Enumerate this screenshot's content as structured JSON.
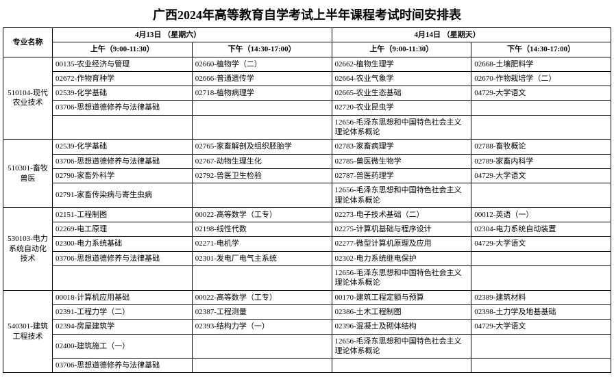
{
  "title": "广西2024年高等教育自学考试上半年课程考试时间安排表",
  "headers": {
    "major": "专业名称",
    "dateA": "4月13日 （星期六）",
    "dateB": "4月14日 （星期天）",
    "amA": "上午（9:00-11:30）",
    "pmA": "下午（14:30-17:00）",
    "amB": "上午（9:00-11:30）",
    "pmB": "下午（14:30-17:00）"
  },
  "majors": [
    {
      "name": "510104-现代农业技术",
      "rows": [
        [
          "00135-农业经济与管理",
          "02660-植物学（二）",
          "02662-植物生理学",
          "02668-土壤肥料学"
        ],
        [
          "02672-作物育种学",
          "02666-普通遗传学",
          "02664-农业气象学",
          "02670-作物栽培学（二）"
        ],
        [
          "02539-化学基础",
          "02718-植物病理学",
          "02665-农业生态基础",
          "04729-大学语文"
        ],
        [
          "03706-思想道德修养与法律基础",
          "",
          "02720-农业昆虫学",
          ""
        ],
        [
          "",
          "",
          "12656-毛泽东思想和中国特色社会主义理论体系概论",
          ""
        ]
      ]
    },
    {
      "name": "510301-畜牧兽医",
      "rows": [
        [
          "02539-化学基础",
          "02765-家畜解剖及组织胚胎学",
          "02783-家畜病理学",
          "02788-畜牧概论"
        ],
        [
          "03706-思想道德修养与法律基础",
          "02767-动物生理生化",
          "02785-兽医微生物学",
          "02789-家畜内科学"
        ],
        [
          "02790-家畜外科学",
          "02792-兽医卫生检验",
          "02787-兽医药理学",
          "04729-大学语文"
        ],
        [
          "02791-家畜传染病与寄生虫病",
          "",
          "12656-毛泽东思想和中国特色社会主义理论体系概论",
          ""
        ]
      ]
    },
    {
      "name": "530103-电力系统自动化技术",
      "rows": [
        [
          "02151-工程制图",
          "00022-高等数学（工专）",
          "02273-电子技术基础（二）",
          "00012-英语（一）"
        ],
        [
          "02269-电工原理",
          "02198-线性代数",
          "02275-计算机基础与程序设计",
          "02304-电力系统自动装置"
        ],
        [
          "02300-电力系统基础",
          "02271-电机学",
          "02277-微型计算机原理及应用",
          "04729-大学语文"
        ],
        [
          "03706-思想道德修养与法律基础",
          "02301-发电厂电气主系统",
          "02302-电力系统继电保护",
          ""
        ],
        [
          "",
          "",
          "12656-毛泽东思想和中国特色社会主义理论体系概论",
          ""
        ]
      ]
    },
    {
      "name": "540301-建筑工程技术",
      "rows": [
        [
          "00018-计算机应用基础",
          "00022-高等数学（工专）",
          "00170-建筑工程定额与预算",
          "02389-建筑材料"
        ],
        [
          "02391-工程力学（二）",
          "02387-工程测量",
          "02386-土木工程制图",
          "02398-土力学及地基基础"
        ],
        [
          "02394-房屋建筑学",
          "02393-结构力学（一）",
          "02396-混凝土及砌体结构",
          "04729-大学语文"
        ],
        [
          "02400-建筑施工（一）",
          "",
          "12656-毛泽东思想和中国特色社会主义理论体系概论",
          ""
        ],
        [
          "03706-思想道德修养与法律基础",
          "",
          "",
          ""
        ]
      ]
    }
  ]
}
